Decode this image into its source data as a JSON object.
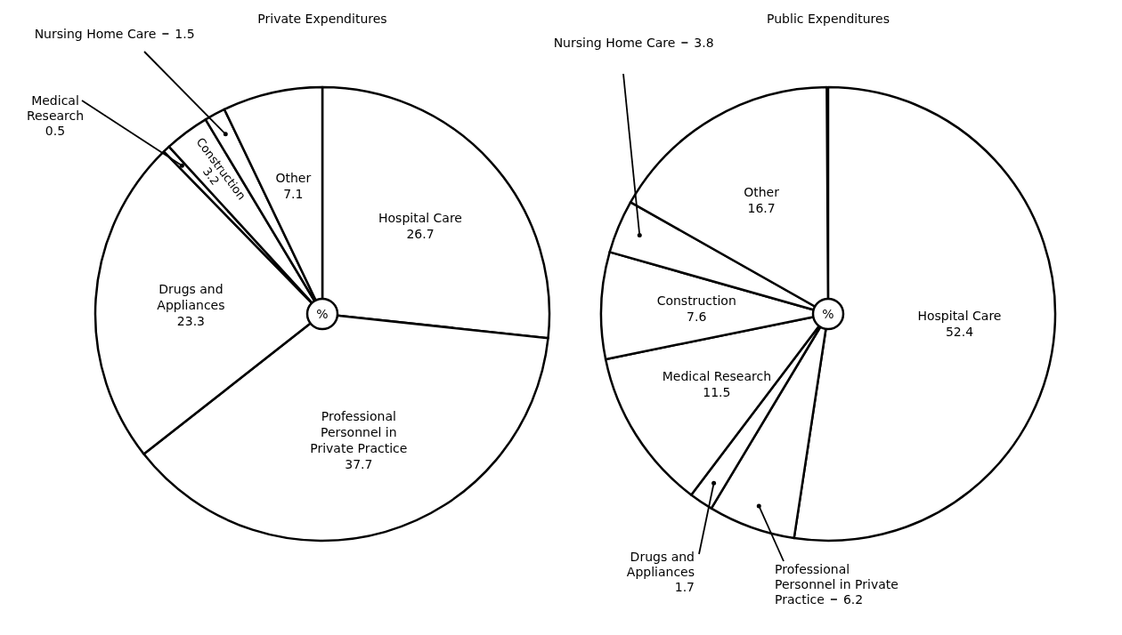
{
  "chart_data": [
    {
      "type": "pie",
      "title": "Private Expenditures",
      "categories": [
        "Hospital Care",
        "Professional Personnel in Private Practice",
        "Drugs and Appliances",
        "Medical Research",
        "Construction",
        "Nursing Home Care",
        "Other"
      ],
      "values": [
        26.7,
        37.7,
        23.3,
        0.5,
        3.2,
        1.5,
        7.1
      ],
      "colors": [
        "#ffffff",
        "#ffffff",
        "#ffffff",
        "#ffffff",
        "#ffffff",
        "#ffffff",
        "#ffffff"
      ],
      "data_labels": true,
      "annotations": [
        "%"
      ]
    },
    {
      "type": "pie",
      "title": "Public Expenditures",
      "categories": [
        "Hospital Care",
        "Professional Personnel in Private Practice",
        "Drugs and Appliances",
        "Medical Research",
        "Construction",
        "Nursing Home Care",
        "Other"
      ],
      "values": [
        52.4,
        6.2,
        1.7,
        11.5,
        7.6,
        3.8,
        16.7
      ],
      "colors": [
        "#ffffff",
        "#ffffff",
        "#ffffff",
        "#ffffff",
        "#ffffff",
        "#ffffff",
        "#ffffff"
      ],
      "data_labels": true,
      "annotations": [
        "%"
      ]
    }
  ]
}
